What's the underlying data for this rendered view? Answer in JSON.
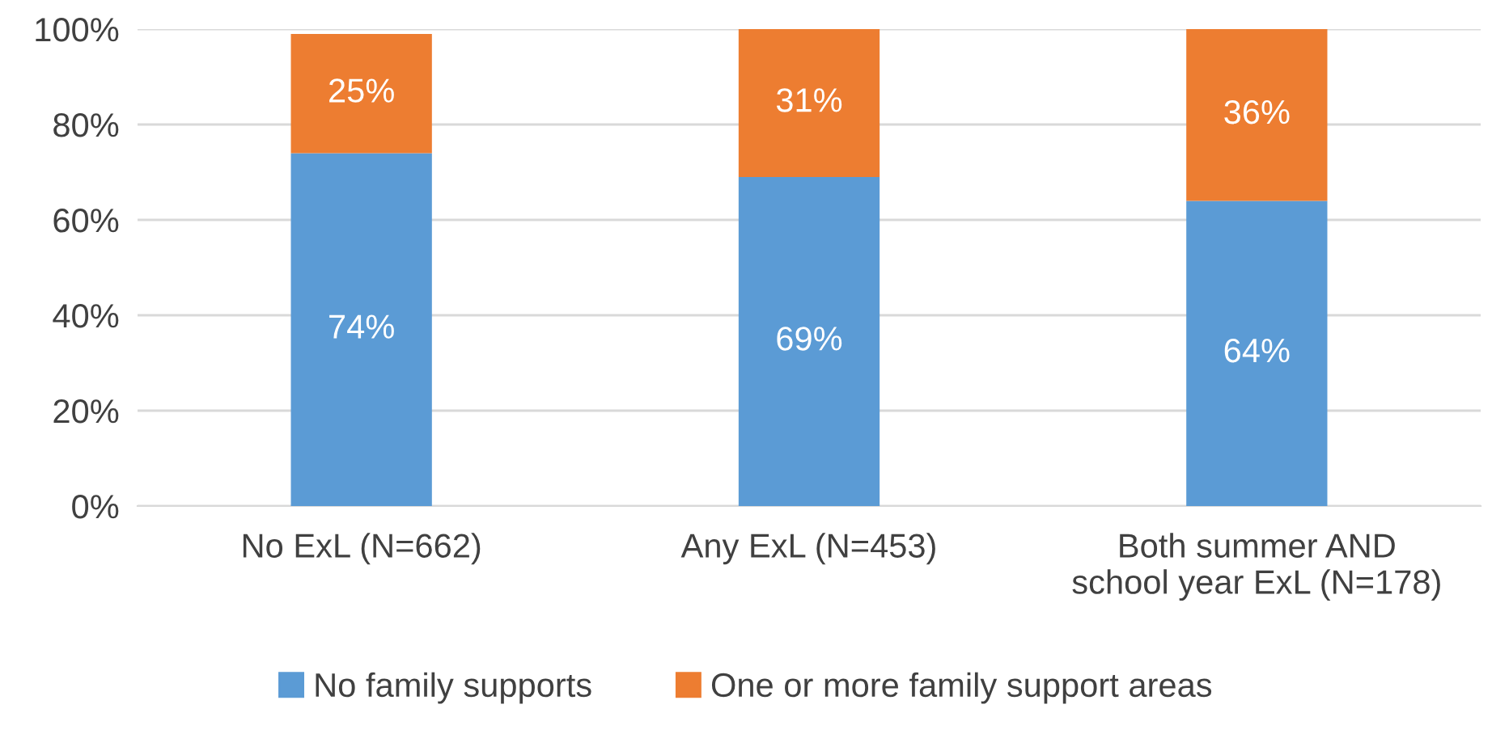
{
  "chart_data": {
    "type": "bar",
    "stacked": true,
    "categories": [
      "No ExL (N=662)",
      "Any ExL (N=453)",
      "Both summer AND\nschool year ExL (N=178)"
    ],
    "series": [
      {
        "name": "No family supports",
        "color": "#5b9bd5",
        "values": [
          74,
          69,
          64
        ]
      },
      {
        "name": "One or more family support areas",
        "color": "#ed7d31",
        "values": [
          25,
          31,
          36
        ]
      }
    ],
    "ylim": [
      0,
      100
    ],
    "yticks": [
      {
        "value": 0,
        "label": "0%"
      },
      {
        "value": 20,
        "label": "20%"
      },
      {
        "value": 40,
        "label": "40%"
      },
      {
        "value": 60,
        "label": "60%"
      },
      {
        "value": 80,
        "label": "80%"
      },
      {
        "value": 100,
        "label": "100%"
      }
    ],
    "grid": "y",
    "legend": "bottom",
    "value_labels": [
      [
        "74%",
        "69%",
        "64%"
      ],
      [
        "25%",
        "31%",
        "36%"
      ]
    ]
  }
}
